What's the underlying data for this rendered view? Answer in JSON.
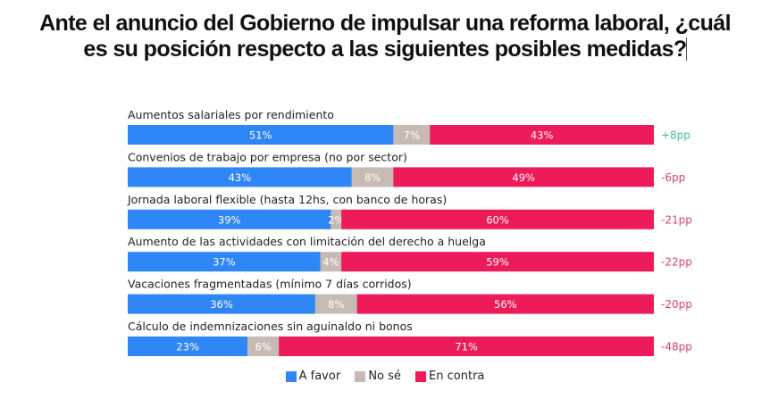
{
  "title_lines": [
    "Ante el anuncio del Gobierno de impulsar una reforma laboral, ¿cuál",
    "es su posición respecto a las siguientes posibles medidas?"
  ],
  "chart_data": {
    "type": "bar",
    "orientation": "horizontal",
    "stacked": true,
    "title": "Ante el anuncio del Gobierno de impulsar una reforma laboral, ¿cuál es su posición respecto a las siguientes posibles medidas?",
    "categories": [
      "Aumentos salariales por rendimiento",
      "Convenios de trabajo por empresa (no por sector)",
      "Jornada laboral flexible (hasta 12hs, con banco de horas)",
      "Aumento de las actividades con limitación del derecho a huelga",
      "Vacaciones fragmentadas (mínimo 7 días corridos)",
      "Cálculo de indemnizaciones sin aguinaldo ni bonos"
    ],
    "series": [
      {
        "name": "A favor",
        "color": "#2F86F6",
        "values": [
          51,
          43,
          39,
          37,
          36,
          23
        ]
      },
      {
        "name": "No sé",
        "color": "#C7BAB3",
        "values": [
          7,
          8,
          2,
          4,
          8,
          6
        ]
      },
      {
        "name": "En contra",
        "color": "#EE1B5B",
        "values": [
          43,
          49,
          60,
          59,
          56,
          71
        ]
      }
    ],
    "value_labels": [
      [
        "51%",
        "7%",
        "43%"
      ],
      [
        "43%",
        "8%",
        "49%"
      ],
      [
        "39%",
        "2%",
        "60%"
      ],
      [
        "37%",
        "4%",
        "59%"
      ],
      [
        "36%",
        "8%",
        "56%"
      ],
      [
        "23%",
        "6%",
        "71%"
      ]
    ],
    "net_difference": {
      "labels": [
        "+8pp",
        "-6pp",
        "-21pp",
        "-22pp",
        "-20pp",
        "-48pp"
      ],
      "values": [
        8,
        -6,
        -21,
        -22,
        -20,
        -48
      ],
      "positive_color": "#4BB89A",
      "negative_color": "#D8426E"
    },
    "xlabel": "",
    "ylabel": "",
    "xlim": [
      0,
      101
    ],
    "grid": false,
    "legend_position": "bottom-center"
  }
}
